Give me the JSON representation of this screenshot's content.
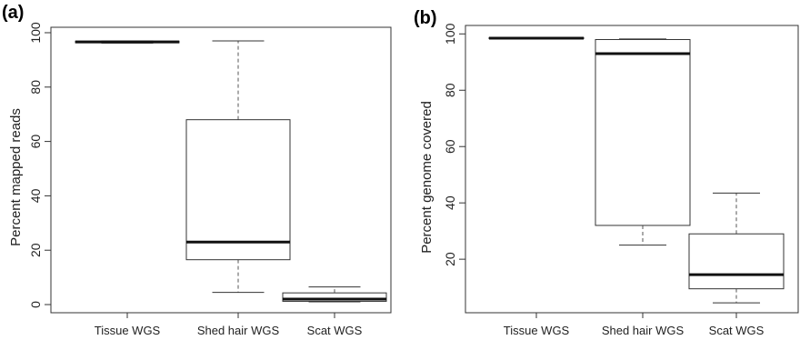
{
  "chart_data": [
    {
      "type": "boxplot",
      "panel_label": "(a)",
      "ylabel": "Percent mapped reads",
      "xlabel": "",
      "categories": [
        "Tissue WGS",
        "Shed hair WGS",
        "Scat WGS"
      ],
      "ylim": [
        -3,
        102
      ],
      "yticks": [
        0,
        20,
        40,
        60,
        80,
        100
      ],
      "boxes": [
        {
          "min": 96.2,
          "q1": 96.3,
          "median": 96.6,
          "q3": 96.9,
          "max": 97.0
        },
        {
          "min": 4.5,
          "q1": 16.5,
          "median": 23.0,
          "q3": 68.0,
          "max": 97.0
        },
        {
          "min": 1.0,
          "q1": 1.2,
          "median": 2.0,
          "q3": 4.3,
          "max": 6.5
        }
      ],
      "grid": false
    },
    {
      "type": "boxplot",
      "panel_label": "(b)",
      "ylabel": "Percent genome covered",
      "xlabel": "",
      "categories": [
        "Tissue WGS",
        "Shed hair WGS",
        "Scat WGS"
      ],
      "ylim": [
        1,
        103
      ],
      "yticks": [
        20,
        40,
        60,
        80,
        100
      ],
      "boxes": [
        {
          "min": 98.2,
          "q1": 98.3,
          "median": 98.5,
          "q3": 98.7,
          "max": 98.8
        },
        {
          "min": 25.0,
          "q1": 32.0,
          "median": 93.0,
          "q3": 98.0,
          "max": 98.2
        },
        {
          "min": 4.5,
          "q1": 9.5,
          "median": 14.5,
          "q3": 29.0,
          "max": 43.5
        }
      ],
      "grid": false
    }
  ]
}
